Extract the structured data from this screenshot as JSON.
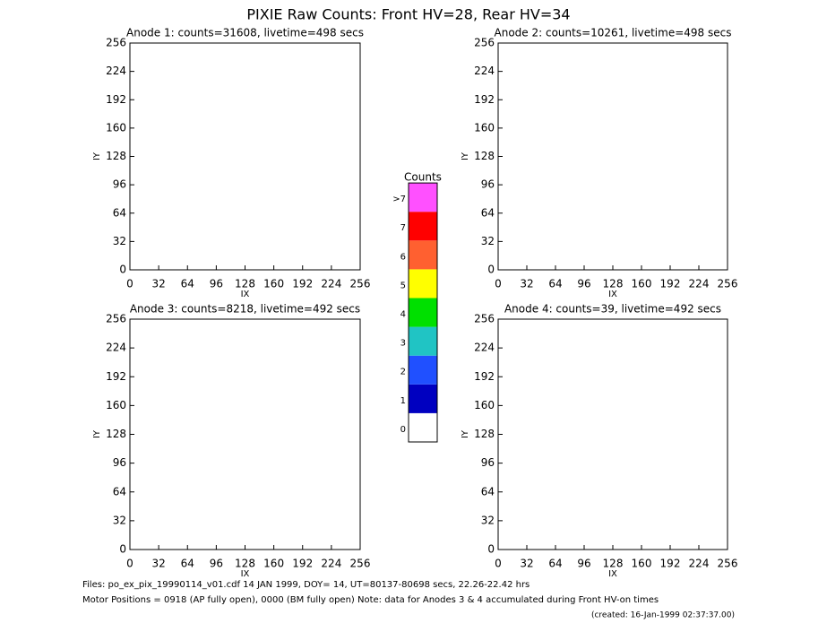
{
  "title": "PIXIE Raw Counts:  Front HV=28, Rear HV=34",
  "chart_data": [
    {
      "type": "heatmap",
      "title": "Anode 1: counts=31608, livetime=498 secs",
      "xlabel": "IX",
      "ylabel": "IY",
      "xlim": [
        0,
        256
      ],
      "ylim": [
        0,
        256
      ],
      "xticks": [
        0,
        32,
        64,
        96,
        128,
        160,
        192,
        224,
        256
      ],
      "yticks": [
        0,
        32,
        64,
        96,
        128,
        160,
        192,
        224,
        256
      ]
    },
    {
      "type": "heatmap",
      "title": "Anode 2: counts=10261, livetime=498 secs",
      "xlabel": "IX",
      "ylabel": "IY",
      "xlim": [
        0,
        256
      ],
      "ylim": [
        0,
        256
      ],
      "xticks": [
        0,
        32,
        64,
        96,
        128,
        160,
        192,
        224,
        256
      ],
      "yticks": [
        0,
        32,
        64,
        96,
        128,
        160,
        192,
        224,
        256
      ]
    },
    {
      "type": "heatmap",
      "title": "Anode 3: counts=8218, livetime=492 secs",
      "xlabel": "IX",
      "ylabel": "IY",
      "xlim": [
        0,
        256
      ],
      "ylim": [
        0,
        256
      ],
      "xticks": [
        0,
        32,
        64,
        96,
        128,
        160,
        192,
        224,
        256
      ],
      "yticks": [
        0,
        32,
        64,
        96,
        128,
        160,
        192,
        224,
        256
      ]
    },
    {
      "type": "heatmap",
      "title": "Anode 4: counts=39, livetime=492 secs",
      "xlabel": "IX",
      "ylabel": "IY",
      "xlim": [
        0,
        256
      ],
      "ylim": [
        0,
        256
      ],
      "xticks": [
        0,
        32,
        64,
        96,
        128,
        160,
        192,
        224,
        256
      ],
      "yticks": [
        0,
        32,
        64,
        96,
        128,
        160,
        192,
        224,
        256
      ]
    },
    {
      "type": "colorbar",
      "title": "Counts",
      "categories": [
        "0",
        "1",
        "2",
        "3",
        "4",
        "5",
        "6",
        "7",
        ">7"
      ],
      "colors": [
        "#ffffff",
        "#0000c0",
        "#2050ff",
        "#20c4c4",
        "#00e000",
        "#ffff00",
        "#ff6030",
        "#ff0000",
        "#ff50ff"
      ]
    }
  ],
  "footer": {
    "files": "Files: po_ex_pix_19990114_v01.cdf    14 JAN 1999, DOY= 14, UT=80137-80698 secs, 22.26-22.42 hrs",
    "motor": "Motor Positions = 0918 (AP fully open), 0000 (BM fully open)    Note: data for Anodes 3 & 4 accumulated during Front HV-on times",
    "created": "(created: 16-Jan-1999 02:37:37.00)"
  }
}
